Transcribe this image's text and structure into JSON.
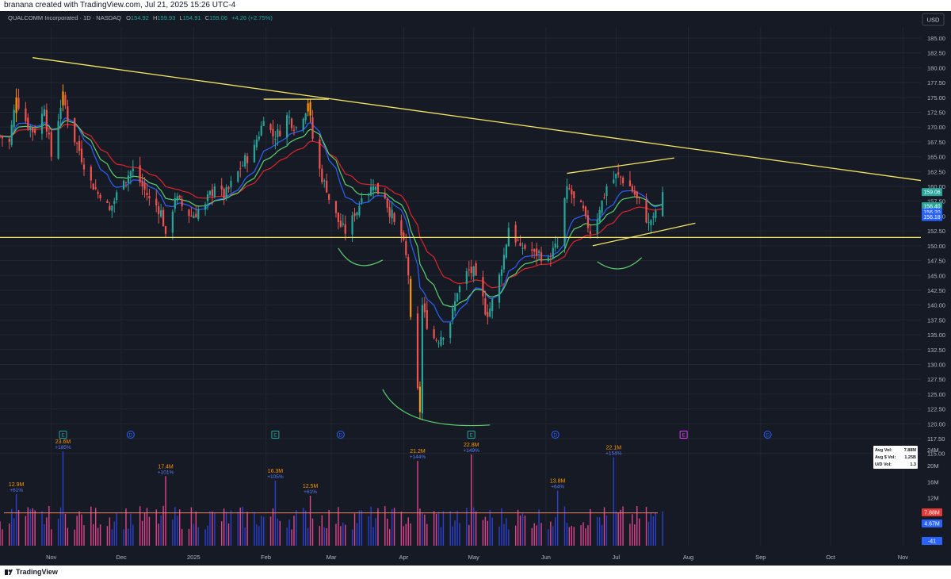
{
  "header": {
    "attribution": "branana created with TradingView.com, Jul 21, 2025 15:26 UTC-4"
  },
  "footer": {
    "brand": "TradingView"
  },
  "legend": {
    "symbol": "QUALCOMM Incorporated · 1D · NASDAQ",
    "o_label": "O",
    "o_value": "154.92",
    "h_label": "H",
    "h_value": "159.93",
    "l_label": "L",
    "l_value": "154.91",
    "c_label": "C",
    "c_value": "159.06",
    "change": "+4.26 (+2.75%)"
  },
  "currency": "USD",
  "colors": {
    "background": "#161a25",
    "grid": "#222633",
    "up": "#26a69a",
    "down": "#ef5350",
    "highlight": "#ff9800",
    "trendline": "#f5e663",
    "ema_red": "#e0242b",
    "ema_blue": "#2962ff",
    "ema_green": "#5bd16e",
    "vol_up": "#2b3fd0",
    "vol_down": "#e0438e",
    "vol_ma": "#f2826a",
    "text": "#b2b5be",
    "annotation_orange": "#ff9800",
    "annotation_blue": "#5b7cff"
  },
  "chart_data": [
    {
      "type": "candlestick",
      "y_axis": {
        "range": [
          115,
          187
        ],
        "ticks": [
          "185.00",
          "182.50",
          "180.00",
          "177.50",
          "175.00",
          "172.50",
          "170.00",
          "167.50",
          "165.00",
          "162.50",
          "160.00",
          "157.50",
          "155.00",
          "152.50",
          "150.00",
          "147.50",
          "145.00",
          "142.50",
          "140.00",
          "137.50",
          "135.00",
          "132.50",
          "130.00",
          "127.50",
          "125.00",
          "122.50",
          "120.00",
          "117.50",
          "115.00"
        ]
      },
      "x_axis": {
        "range": [
          "2024-10-10",
          "2025-11-08"
        ],
        "ticks": [
          {
            "date": "2024-11-01",
            "label": "Nov"
          },
          {
            "date": "2024-12-01",
            "label": "Dec"
          },
          {
            "date": "2025-01-01",
            "label": "2025"
          },
          {
            "date": "2025-02-01",
            "label": "Feb"
          },
          {
            "date": "2025-03-01",
            "label": "Mar"
          },
          {
            "date": "2025-04-01",
            "label": "Apr"
          },
          {
            "date": "2025-05-01",
            "label": "May"
          },
          {
            "date": "2025-06-01",
            "label": "Jun"
          },
          {
            "date": "2025-07-01",
            "label": "Jul"
          },
          {
            "date": "2025-08-01",
            "label": "Aug"
          },
          {
            "date": "2025-09-01",
            "label": "Sep"
          },
          {
            "date": "2025-10-01",
            "label": "Oct"
          },
          {
            "date": "2025-11-01",
            "label": "Nov"
          }
        ]
      },
      "grid": true,
      "price_labels": [
        {
          "value": "159.06",
          "price": 159.06,
          "color": "#26a69a"
        },
        {
          "value": "156.40",
          "price": 156.4,
          "color": "#26a69a"
        },
        {
          "value": "156.20",
          "price": 156.2,
          "color": "#2962ff"
        },
        {
          "value": "156.18",
          "price": 156.18,
          "color": "#2962ff"
        }
      ],
      "anchors": [
        {
          "date": "2024-10-10",
          "close": 168.5
        },
        {
          "date": "2024-10-14",
          "close": 167.5
        },
        {
          "date": "2024-10-17",
          "close": 175
        },
        {
          "date": "2024-10-21",
          "close": 171
        },
        {
          "date": "2024-10-25",
          "close": 169
        },
        {
          "date": "2024-10-29",
          "close": 173
        },
        {
          "date": "2024-11-01",
          "close": 165
        },
        {
          "date": "2024-11-06",
          "close": 176
        },
        {
          "date": "2024-11-08",
          "close": 171
        },
        {
          "date": "2024-11-13",
          "close": 166
        },
        {
          "date": "2024-11-18",
          "close": 161
        },
        {
          "date": "2024-11-22",
          "close": 158
        },
        {
          "date": "2024-11-26",
          "close": 156
        },
        {
          "date": "2024-12-02",
          "close": 161
        },
        {
          "date": "2024-12-06",
          "close": 163
        },
        {
          "date": "2024-12-10",
          "close": 160
        },
        {
          "date": "2024-12-13",
          "close": 158
        },
        {
          "date": "2024-12-18",
          "close": 156
        },
        {
          "date": "2024-12-20",
          "close": 152
        },
        {
          "date": "2024-12-24",
          "close": 158
        },
        {
          "date": "2024-12-31",
          "close": 155
        },
        {
          "date": "2025-01-06",
          "close": 157
        },
        {
          "date": "2025-01-10",
          "close": 160
        },
        {
          "date": "2025-01-14",
          "close": 158
        },
        {
          "date": "2025-01-21",
          "close": 163
        },
        {
          "date": "2025-01-27",
          "close": 167
        },
        {
          "date": "2025-01-31",
          "close": 171
        },
        {
          "date": "2025-02-05",
          "close": 168
        },
        {
          "date": "2025-02-10",
          "close": 172
        },
        {
          "date": "2025-02-14",
          "close": 170
        },
        {
          "date": "2025-02-19",
          "close": 174
        },
        {
          "date": "2025-02-21",
          "close": 168
        },
        {
          "date": "2025-02-24",
          "close": 163
        },
        {
          "date": "2025-02-27",
          "close": 159
        },
        {
          "date": "2025-03-04",
          "close": 154
        },
        {
          "date": "2025-03-07",
          "close": 152
        },
        {
          "date": "2025-03-11",
          "close": 155
        },
        {
          "date": "2025-03-14",
          "close": 158
        },
        {
          "date": "2025-03-19",
          "close": 160
        },
        {
          "date": "2025-03-24",
          "close": 158
        },
        {
          "date": "2025-03-28",
          "close": 154
        },
        {
          "date": "2025-04-01",
          "close": 151
        },
        {
          "date": "2025-04-03",
          "close": 145
        },
        {
          "date": "2025-04-04",
          "close": 138
        },
        {
          "date": "2025-04-07",
          "close": 126
        },
        {
          "date": "2025-04-08",
          "close": 122
        },
        {
          "date": "2025-04-09",
          "close": 140
        },
        {
          "date": "2025-04-11",
          "close": 136
        },
        {
          "date": "2025-04-15",
          "close": 134
        },
        {
          "date": "2025-04-21",
          "close": 137
        },
        {
          "date": "2025-04-24",
          "close": 142
        },
        {
          "date": "2025-04-29",
          "close": 146
        },
        {
          "date": "2025-05-02",
          "close": 145
        },
        {
          "date": "2025-05-07",
          "close": 138
        },
        {
          "date": "2025-05-09",
          "close": 141
        },
        {
          "date": "2025-05-13",
          "close": 146
        },
        {
          "date": "2025-05-16",
          "close": 153
        },
        {
          "date": "2025-05-21",
          "close": 150
        },
        {
          "date": "2025-05-27",
          "close": 149
        },
        {
          "date": "2025-06-02",
          "close": 148
        },
        {
          "date": "2025-06-06",
          "close": 150
        },
        {
          "date": "2025-06-10",
          "close": 160
        },
        {
          "date": "2025-06-13",
          "close": 158
        },
        {
          "date": "2025-06-18",
          "close": 155
        },
        {
          "date": "2025-06-20",
          "close": 152
        },
        {
          "date": "2025-06-24",
          "close": 156
        },
        {
          "date": "2025-06-27",
          "close": 160
        },
        {
          "date": "2025-07-02",
          "close": 162
        },
        {
          "date": "2025-07-07",
          "close": 160
        },
        {
          "date": "2025-07-10",
          "close": 158
        },
        {
          "date": "2025-07-15",
          "close": 154
        },
        {
          "date": "2025-07-17",
          "close": 155
        },
        {
          "date": "2025-07-21",
          "close": 159.06
        }
      ],
      "highlighted_candles": [
        "2024-10-17",
        "2024-11-06",
        "2025-02-19",
        "2025-02-20",
        "2025-04-04",
        "2025-04-08"
      ],
      "trendlines": [
        {
          "name": "descending-resistance",
          "from": {
            "date": "2024-10-24",
            "price": 181.7
          },
          "to": {
            "date": "2025-11-10",
            "price": 161
          }
        },
        {
          "name": "horizontal-support",
          "from": {
            "date": "2024-10-10",
            "price": 151.4
          },
          "to": {
            "date": "2025-11-10",
            "price": 151.4
          }
        },
        {
          "name": "top-marker",
          "from": {
            "date": "2025-01-31",
            "price": 174.7
          },
          "to": {
            "date": "2025-02-28",
            "price": 174.7
          }
        },
        {
          "name": "channel-upper",
          "from": {
            "date": "2025-06-10",
            "price": 162.2
          },
          "to": {
            "date": "2025-07-26",
            "price": 164.8
          }
        },
        {
          "name": "channel-lower",
          "from": {
            "date": "2025-06-21",
            "price": 150.0
          },
          "to": {
            "date": "2025-08-04",
            "price": 153.8
          }
        }
      ],
      "arcs": [
        {
          "name": "shoulder-left-arc",
          "points": [
            {
              "date": "2025-03-04",
              "price": 149.6
            },
            {
              "date": "2025-03-11",
              "price": 146.6
            },
            {
              "date": "2025-03-23",
              "price": 147.6
            }
          ]
        },
        {
          "name": "head-arc",
          "points": [
            {
              "date": "2025-03-23",
              "price": 125.8
            },
            {
              "date": "2025-04-01",
              "price": 120.5
            },
            {
              "date": "2025-05-08",
              "price": 119.8
            }
          ]
        },
        {
          "name": "shoulder-right-arc",
          "points": [
            {
              "date": "2025-06-23",
              "price": 147.3
            },
            {
              "date": "2025-07-03",
              "price": 146.2
            },
            {
              "date": "2025-07-12",
              "price": 148.0
            }
          ]
        }
      ],
      "events": [
        {
          "date": "2024-11-06",
          "letter": "E",
          "kind": "earnings",
          "color": "#26a69a"
        },
        {
          "date": "2024-12-05",
          "letter": "D",
          "kind": "dividend",
          "color": "#2962ff"
        },
        {
          "date": "2025-02-05",
          "letter": "E",
          "kind": "earnings",
          "color": "#26a69a"
        },
        {
          "date": "2025-03-05",
          "letter": "D",
          "kind": "dividend",
          "color": "#2962ff"
        },
        {
          "date": "2025-04-30",
          "letter": "E",
          "kind": "earnings",
          "color": "#26a69a"
        },
        {
          "date": "2025-06-05",
          "letter": "D",
          "kind": "dividend",
          "color": "#2962ff"
        },
        {
          "date": "2025-07-30",
          "letter": "E",
          "kind": "earnings",
          "color": "#e040fb"
        },
        {
          "date": "2025-09-04",
          "letter": "D",
          "kind": "dividend",
          "color": "#2962ff"
        }
      ]
    },
    {
      "type": "bar",
      "name": "volume",
      "y_axis": {
        "range": [
          0,
          25
        ],
        "ticks": [
          "24M",
          "20M",
          "16M",
          "12M"
        ]
      },
      "stats_labels": [
        {
          "label": "Avg Vol:",
          "value": "7.88M"
        },
        {
          "label": "Avg $ Vol:",
          "value": "1.25B"
        },
        {
          "label": "U/D Vol:",
          "value": "1.3"
        }
      ],
      "axis_badges": [
        {
          "value": "7.88M",
          "color": "#e53935"
        },
        {
          "value": "4.67M",
          "color": "#2962ff"
        },
        {
          "value": "-41",
          "color": "#2962ff"
        }
      ],
      "average_volume": 8.2,
      "spikes": [
        {
          "date": "2024-10-17",
          "volume": 12.9,
          "label": "12.9M",
          "pct": "+61%"
        },
        {
          "date": "2024-11-06",
          "volume": 23.6,
          "label": "23.6M",
          "pct": "+185%"
        },
        {
          "date": "2024-12-20",
          "volume": 17.4,
          "label": "17.4M",
          "pct": "+101%"
        },
        {
          "date": "2025-02-05",
          "volume": 16.3,
          "label": "16.3M",
          "pct": "+105%"
        },
        {
          "date": "2025-02-20",
          "volume": 12.5,
          "label": "12.5M",
          "pct": "+61%"
        },
        {
          "date": "2025-04-07",
          "volume": 21.2,
          "label": "21.2M",
          "pct": "+144%"
        },
        {
          "date": "2025-04-30",
          "volume": 22.8,
          "label": "22.8M",
          "pct": "+149%"
        },
        {
          "date": "2025-06-06",
          "volume": 13.8,
          "label": "13.8M",
          "pct": "+64%"
        },
        {
          "date": "2025-06-30",
          "volume": 22.1,
          "label": "22.1M",
          "pct": "+154%"
        }
      ]
    }
  ]
}
